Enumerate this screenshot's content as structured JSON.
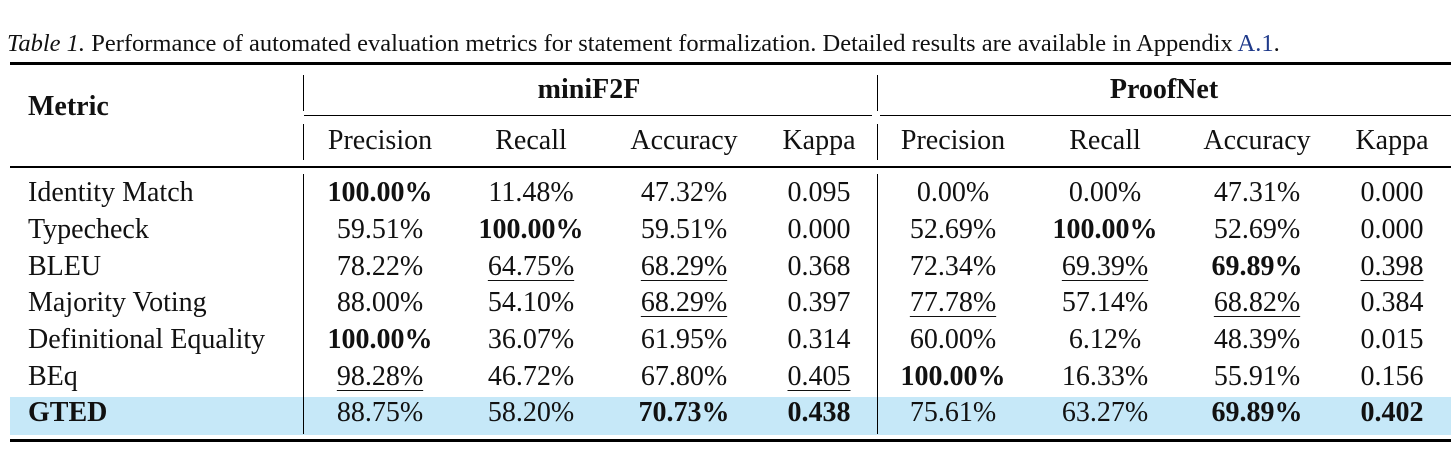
{
  "caption": {
    "label": "Table 1.",
    "text": " Performance of automated evaluation metrics for statement formalization. Detailed results are available in Appendix ",
    "ref": "A.1",
    "end": "."
  },
  "header": {
    "metric": "Metric",
    "groups": [
      "miniF2F",
      "ProofNet"
    ],
    "columns": [
      "Precision",
      "Recall",
      "Accuracy",
      "Kappa",
      "Precision",
      "Recall",
      "Accuracy",
      "Kappa"
    ]
  },
  "rows": [
    {
      "metric": "Identity Match",
      "highlight": false,
      "metric_bold": false,
      "values": [
        "100.00%",
        "11.48%",
        "47.32%",
        "0.095",
        "0.00%",
        "0.00%",
        "47.31%",
        "0.000"
      ],
      "styles": [
        "b",
        "",
        "",
        "",
        "",
        "",
        "",
        ""
      ]
    },
    {
      "metric": "Typecheck",
      "highlight": false,
      "metric_bold": false,
      "values": [
        "59.51%",
        "100.00%",
        "59.51%",
        "0.000",
        "52.69%",
        "100.00%",
        "52.69%",
        "0.000"
      ],
      "styles": [
        "",
        "b",
        "",
        "",
        "",
        "b",
        "",
        ""
      ]
    },
    {
      "metric": "BLEU",
      "highlight": false,
      "metric_bold": false,
      "values": [
        "78.22%",
        "64.75%",
        "68.29%",
        "0.368",
        "72.34%",
        "69.39%",
        "69.89%",
        "0.398"
      ],
      "styles": [
        "",
        "u",
        "u",
        "",
        "",
        "u",
        "b",
        "u"
      ]
    },
    {
      "metric": "Majority Voting",
      "highlight": false,
      "metric_bold": false,
      "values": [
        "88.00%",
        "54.10%",
        "68.29%",
        "0.397",
        "77.78%",
        "57.14%",
        "68.82%",
        "0.384"
      ],
      "styles": [
        "",
        "",
        "u",
        "",
        "u",
        "",
        "u",
        ""
      ]
    },
    {
      "metric": "Definitional Equality",
      "highlight": false,
      "metric_bold": false,
      "values": [
        "100.00%",
        "36.07%",
        "61.95%",
        "0.314",
        "60.00%",
        "6.12%",
        "48.39%",
        "0.015"
      ],
      "styles": [
        "b",
        "",
        "",
        "",
        "",
        "",
        "",
        ""
      ]
    },
    {
      "metric": "BEq",
      "highlight": false,
      "metric_bold": false,
      "values": [
        "98.28%",
        "46.72%",
        "67.80%",
        "0.405",
        "100.00%",
        "16.33%",
        "55.91%",
        "0.156"
      ],
      "styles": [
        "u",
        "",
        "",
        "u",
        "b",
        "",
        "",
        ""
      ]
    },
    {
      "metric": "GTED",
      "highlight": true,
      "metric_bold": true,
      "values": [
        "88.75%",
        "58.20%",
        "70.73%",
        "0.438",
        "75.61%",
        "63.27%",
        "69.89%",
        "0.402"
      ],
      "styles": [
        "",
        "",
        "b",
        "b",
        "",
        "",
        "b",
        "b"
      ]
    }
  ],
  "colors": {
    "highlight_row": "#c6e8f8",
    "link": "#1f3a8a",
    "rule": "#000000"
  }
}
